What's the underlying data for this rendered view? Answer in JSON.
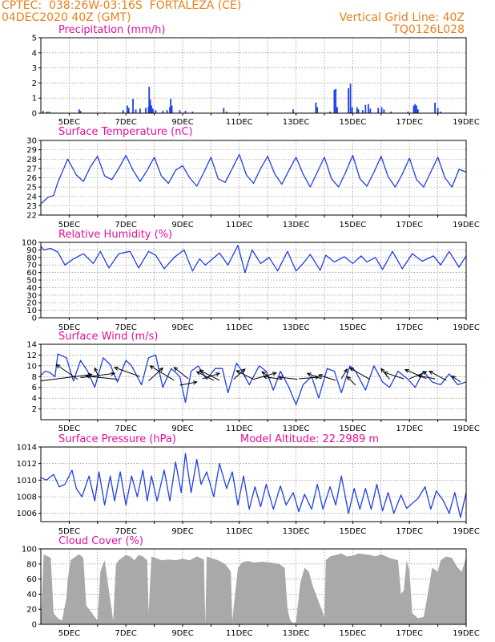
{
  "header": {
    "line1": "CPTEC:  038:26W-03:16S  FORTALEZA (CE)",
    "line2": "04DEC2020 40Z (GMT)",
    "grid_note": "Vertical Grid Line: 40Z",
    "code": "TQ0126L028"
  },
  "colors": {
    "header": "#e8801a",
    "title": "#e0109a",
    "line": "#1f3fe6",
    "bar": "#1f3fe6",
    "cloud": "#a9a9a9",
    "arrow": "#000000",
    "grid": "#7a7a7a"
  },
  "x_ticks": [
    "5DEC",
    "7DEC",
    "9DEC",
    "11DEC",
    "13DEC",
    "15DEC",
    "17DEC",
    "19DEC"
  ],
  "chart_data": [
    {
      "type": "bar",
      "title": "Precipitation (mm/h)",
      "ylim": [
        0,
        5
      ],
      "yticks": [
        0,
        1,
        2,
        3,
        4,
        5
      ],
      "x_range_days": [
        4.0,
        19.0
      ],
      "bars": [
        [
          4.08,
          0.15
        ],
        [
          4.22,
          0.1
        ],
        [
          4.3,
          0.1
        ],
        [
          5.35,
          0.25
        ],
        [
          5.4,
          0.15
        ],
        [
          6.25,
          0.05
        ],
        [
          6.9,
          0.2
        ],
        [
          7.05,
          0.5
        ],
        [
          7.1,
          0.35
        ],
        [
          7.25,
          0.95
        ],
        [
          7.35,
          0.25
        ],
        [
          7.5,
          0.3
        ],
        [
          7.7,
          0.35
        ],
        [
          7.8,
          0.4
        ],
        [
          7.82,
          1.75
        ],
        [
          7.86,
          0.9
        ],
        [
          7.9,
          0.5
        ],
        [
          7.95,
          0.3
        ],
        [
          8.05,
          0.2
        ],
        [
          8.3,
          0.15
        ],
        [
          8.45,
          0.2
        ],
        [
          8.55,
          0.4
        ],
        [
          8.58,
          0.95
        ],
        [
          8.62,
          0.5
        ],
        [
          8.9,
          0.2
        ],
        [
          9.1,
          0.15
        ],
        [
          9.35,
          0.1
        ],
        [
          10.45,
          0.35
        ],
        [
          10.55,
          0.1
        ],
        [
          12.9,
          0.25
        ],
        [
          13.7,
          0.7
        ],
        [
          13.75,
          0.4
        ],
        [
          14.2,
          0.1
        ],
        [
          14.35,
          1.55
        ],
        [
          14.4,
          1.6
        ],
        [
          14.45,
          0.4
        ],
        [
          14.85,
          1.65
        ],
        [
          14.92,
          1.95
        ],
        [
          14.98,
          0.4
        ],
        [
          15.15,
          0.4
        ],
        [
          15.2,
          0.25
        ],
        [
          15.35,
          0.2
        ],
        [
          15.45,
          0.55
        ],
        [
          15.55,
          0.6
        ],
        [
          15.62,
          0.3
        ],
        [
          15.9,
          0.35
        ],
        [
          16.02,
          0.4
        ],
        [
          16.1,
          0.25
        ],
        [
          16.35,
          0.1
        ],
        [
          16.95,
          0.1
        ],
        [
          17.15,
          0.5
        ],
        [
          17.2,
          0.6
        ],
        [
          17.25,
          0.5
        ],
        [
          17.3,
          0.25
        ],
        [
          17.9,
          0.7
        ],
        [
          18.0,
          0.35
        ],
        [
          18.1,
          0.1
        ]
      ]
    },
    {
      "type": "line",
      "title": "Surface Temperature (nC)",
      "ylim": [
        22,
        30
      ],
      "yticks": [
        22,
        23,
        24,
        25,
        26,
        27,
        28,
        29,
        30
      ],
      "x": [
        4.0,
        4.25,
        4.45,
        4.6,
        4.95,
        5.25,
        5.5,
        5.75,
        6.0,
        6.25,
        6.5,
        6.75,
        7.0,
        7.25,
        7.5,
        7.75,
        8.0,
        8.25,
        8.5,
        8.75,
        9.0,
        9.25,
        9.5,
        9.75,
        10.0,
        10.25,
        10.5,
        10.75,
        11.0,
        11.25,
        11.5,
        11.75,
        12.0,
        12.25,
        12.5,
        12.75,
        13.0,
        13.25,
        13.5,
        13.75,
        14.0,
        14.25,
        14.5,
        14.75,
        15.0,
        15.25,
        15.5,
        15.75,
        16.0,
        16.25,
        16.5,
        16.75,
        17.0,
        17.25,
        17.5,
        17.75,
        18.0,
        18.25,
        18.5,
        18.75,
        19.0
      ],
      "values": [
        23.2,
        23.9,
        24.1,
        25.5,
        28.0,
        26.3,
        25.6,
        27.2,
        28.3,
        26.2,
        25.8,
        27.0,
        28.4,
        26.8,
        25.6,
        26.8,
        28.2,
        26.2,
        25.4,
        26.8,
        27.3,
        26.0,
        25.1,
        26.6,
        28.2,
        25.9,
        25.5,
        27.0,
        28.5,
        26.3,
        25.4,
        27.0,
        28.3,
        26.4,
        25.3,
        26.8,
        28.2,
        26.4,
        25.0,
        26.6,
        28.2,
        25.9,
        25.0,
        26.6,
        28.4,
        25.9,
        25.1,
        26.6,
        28.3,
        26.1,
        25.0,
        26.4,
        28.1,
        25.8,
        25.0,
        26.6,
        28.2,
        26.0,
        25.0,
        26.9,
        26.6
      ]
    },
    {
      "type": "line",
      "title": "Relative Humidity (%)",
      "ylim": [
        0,
        100
      ],
      "yticks": [
        0,
        10,
        20,
        30,
        40,
        50,
        60,
        70,
        80,
        90,
        100
      ],
      "x": [
        4.0,
        4.1,
        4.35,
        4.6,
        4.85,
        5.15,
        5.5,
        5.85,
        6.1,
        6.4,
        6.75,
        7.15,
        7.45,
        7.8,
        8.05,
        8.35,
        8.7,
        9.05,
        9.35,
        9.6,
        9.8,
        10.05,
        10.3,
        10.6,
        10.95,
        11.2,
        11.45,
        11.75,
        12.05,
        12.35,
        12.7,
        13.0,
        13.25,
        13.5,
        13.85,
        14.05,
        14.35,
        14.7,
        15.0,
        15.3,
        15.5,
        15.8,
        16.05,
        16.4,
        16.75,
        17.1,
        17.45,
        17.85,
        18.1,
        18.4,
        18.75,
        19.0
      ],
      "values": [
        95,
        90,
        92,
        87,
        70,
        78,
        85,
        72,
        88,
        66,
        85,
        88,
        66,
        88,
        83,
        65,
        80,
        90,
        62,
        78,
        70,
        78,
        86,
        70,
        96,
        60,
        90,
        72,
        80,
        62,
        88,
        62,
        72,
        84,
        63,
        83,
        74,
        81,
        72,
        82,
        74,
        80,
        64,
        88,
        65,
        85,
        75,
        82,
        70,
        88,
        67,
        82
      ]
    },
    {
      "type": "line",
      "title": "Surface Wind (m/s)",
      "ylim": [
        0,
        14
      ],
      "yticks": [
        2,
        4,
        6,
        8,
        10,
        12,
        14
      ],
      "x": [
        4.0,
        4.15,
        4.3,
        4.5,
        4.6,
        4.9,
        5.15,
        5.4,
        5.65,
        5.9,
        6.2,
        6.45,
        6.7,
        7.0,
        7.2,
        7.55,
        7.8,
        8.05,
        8.3,
        8.6,
        8.9,
        9.1,
        9.3,
        9.55,
        9.85,
        10.15,
        10.4,
        10.6,
        10.9,
        11.1,
        11.35,
        11.7,
        11.95,
        12.2,
        12.45,
        12.75,
        13.0,
        13.25,
        13.55,
        13.8,
        14.1,
        14.35,
        14.6,
        14.9,
        15.1,
        15.45,
        15.75,
        16.05,
        16.3,
        16.6,
        16.95,
        17.2,
        17.5,
        17.8,
        18.1,
        18.4,
        18.7,
        19.0
      ],
      "values": [
        8.2,
        9.0,
        8.8,
        8.0,
        12.2,
        11.5,
        7.2,
        11.0,
        9.0,
        6.0,
        11.5,
        10.2,
        7.0,
        11.0,
        10.0,
        6.5,
        11.5,
        12.0,
        6.0,
        9.5,
        8.0,
        3.2,
        9.0,
        10.0,
        7.5,
        9.5,
        9.5,
        5.0,
        10.5,
        9.0,
        6.5,
        10.0,
        9.0,
        5.5,
        9.0,
        6.0,
        2.8,
        6.5,
        8.0,
        4.0,
        9.5,
        9.0,
        5.0,
        10.0,
        9.0,
        5.5,
        10.0,
        7.0,
        6.0,
        9.0,
        7.5,
        6.0,
        9.0,
        7.0,
        6.5,
        8.5,
        6.5,
        7.0
      ],
      "arrows": [
        [
          4.0,
          7.2,
          5.8,
          8.4
        ],
        [
          5.3,
          7.5,
          4.55,
          10.2
        ],
        [
          5.4,
          7.8,
          6.6,
          8.6
        ],
        [
          6.05,
          7.8,
          5.9,
          9.6
        ],
        [
          6.7,
          7.5,
          5.6,
          8.1
        ],
        [
          7.5,
          8.0,
          6.6,
          9.7
        ],
        [
          7.8,
          7.2,
          8.3,
          9.6
        ],
        [
          8.7,
          7.3,
          7.85,
          10.0
        ],
        [
          8.9,
          6.4,
          9.5,
          7.0
        ],
        [
          9.2,
          7.6,
          8.7,
          9.7
        ],
        [
          9.7,
          7.6,
          10.3,
          8.6
        ],
        [
          10.1,
          7.3,
          9.5,
          8.9
        ],
        [
          10.3,
          7.3,
          9.6,
          9.2
        ],
        [
          10.8,
          7.5,
          11.2,
          9.4
        ],
        [
          11.5,
          7.5,
          10.9,
          9.1
        ],
        [
          11.5,
          7.5,
          12.3,
          8.7
        ],
        [
          12.1,
          7.7,
          11.8,
          8.9
        ],
        [
          12.5,
          7.5,
          11.85,
          8.0
        ],
        [
          13.05,
          7.5,
          12.4,
          7.9
        ],
        [
          13.1,
          7.6,
          13.8,
          7.9
        ],
        [
          13.9,
          7.6,
          13.4,
          8.6
        ],
        [
          14.4,
          7.3,
          13.8,
          8.3
        ],
        [
          14.6,
          7.6,
          14.8,
          9.4
        ],
        [
          15.1,
          6.4,
          14.8,
          8.0
        ],
        [
          15.6,
          7.5,
          14.9,
          9.6
        ],
        [
          16.3,
          7.5,
          16.0,
          9.5
        ],
        [
          16.8,
          7.6,
          16.1,
          8.8
        ],
        [
          17.0,
          7.6,
          17.6,
          8.9
        ],
        [
          17.6,
          7.6,
          16.85,
          9.3
        ],
        [
          17.9,
          7.6,
          17.3,
          8.2
        ],
        [
          18.3,
          7.3,
          17.7,
          9.0
        ],
        [
          18.8,
          7.0,
          18.5,
          8.1
        ]
      ]
    },
    {
      "type": "line",
      "title": "Surface Pressure (hPa)",
      "annotation": "Model Altitude: 22.2989 m",
      "ylim": [
        1005,
        1014
      ],
      "yticks": [
        1006,
        1008,
        1010,
        1012,
        1014
      ],
      "x": [
        4.0,
        4.2,
        4.45,
        4.65,
        4.85,
        5.1,
        5.25,
        5.45,
        5.7,
        5.9,
        6.05,
        6.25,
        6.45,
        6.6,
        6.8,
        7.0,
        7.2,
        7.4,
        7.6,
        7.75,
        7.9,
        8.1,
        8.35,
        8.55,
        8.75,
        8.95,
        9.1,
        9.3,
        9.5,
        9.65,
        9.85,
        10.1,
        10.3,
        10.55,
        10.75,
        10.95,
        11.15,
        11.35,
        11.55,
        11.75,
        11.95,
        12.2,
        12.45,
        12.65,
        12.9,
        13.1,
        13.3,
        13.55,
        13.75,
        13.95,
        14.2,
        14.4,
        14.6,
        14.85,
        15.05,
        15.25,
        15.45,
        15.65,
        15.85,
        16.05,
        16.25,
        16.45,
        16.7,
        16.9,
        17.1,
        17.3,
        17.55,
        17.75,
        17.95,
        18.2,
        18.4,
        18.6,
        18.8,
        19.0
      ],
      "values": [
        1010.3,
        1010.0,
        1010.7,
        1009.2,
        1009.5,
        1011.2,
        1009.0,
        1008.0,
        1010.5,
        1007.5,
        1011.0,
        1007.0,
        1010.5,
        1007.5,
        1011.0,
        1007.0,
        1010.5,
        1008.0,
        1011.2,
        1007.5,
        1010.5,
        1007.5,
        1011.2,
        1007.5,
        1012.2,
        1008.5,
        1013.2,
        1008.5,
        1012.5,
        1009.5,
        1011.0,
        1008.0,
        1012.0,
        1009.0,
        1011.0,
        1007.0,
        1010.5,
        1006.5,
        1009.2,
        1006.8,
        1009.5,
        1006.5,
        1009.3,
        1007.0,
        1008.5,
        1006.2,
        1008.3,
        1006.5,
        1009.5,
        1006.5,
        1009.2,
        1007.0,
        1010.5,
        1006.0,
        1009.0,
        1006.5,
        1009.0,
        1006.5,
        1009.5,
        1006.3,
        1008.5,
        1006.0,
        1008.2,
        1006.6,
        1007.2,
        1007.8,
        1009.2,
        1006.5,
        1008.7,
        1007.5,
        1006.0,
        1008.5,
        1005.5,
        1008.5
      ]
    },
    {
      "type": "area",
      "title": "Cloud Cover (%)",
      "ylim": [
        0,
        100
      ],
      "yticks": [
        0,
        20,
        40,
        60,
        80,
        100
      ],
      "x": [
        4.0,
        4.1,
        4.35,
        4.45,
        4.6,
        4.75,
        4.9,
        4.95,
        5.05,
        5.15,
        5.35,
        5.5,
        5.6,
        6.0,
        6.1,
        6.25,
        6.4,
        6.55,
        6.65,
        6.75,
        7.0,
        7.15,
        7.3,
        7.45,
        7.6,
        7.75,
        7.8,
        7.9,
        8.05,
        8.25,
        8.5,
        8.75,
        9.0,
        9.25,
        9.5,
        9.75,
        9.8,
        9.85,
        10.0,
        10.25,
        10.5,
        10.7,
        10.75,
        10.85,
        10.95,
        11.1,
        11.3,
        11.5,
        11.8,
        12.1,
        12.4,
        12.6,
        12.7,
        12.8,
        12.9,
        13.0,
        13.15,
        13.3,
        13.45,
        13.6,
        13.8,
        14.0,
        14.05,
        14.2,
        14.4,
        14.6,
        14.8,
        15.0,
        15.2,
        15.4,
        15.6,
        15.8,
        16.0,
        16.3,
        16.6,
        16.7,
        16.8,
        16.9,
        17.0,
        17.1,
        17.3,
        17.5,
        17.6,
        17.8,
        18.0,
        18.1,
        18.3,
        18.5,
        18.7,
        18.85,
        19.0
      ],
      "values": [
        0,
        93,
        88,
        15,
        8,
        5,
        35,
        60,
        85,
        88,
        93,
        88,
        25,
        5,
        70,
        85,
        45,
        5,
        80,
        85,
        92,
        90,
        85,
        92,
        90,
        85,
        15,
        90,
        88,
        85,
        86,
        85,
        87,
        85,
        90,
        86,
        0,
        90,
        88,
        85,
        80,
        70,
        5,
        40,
        75,
        82,
        84,
        82,
        83,
        82,
        80,
        75,
        20,
        5,
        2,
        3,
        55,
        75,
        70,
        50,
        30,
        10,
        85,
        90,
        92,
        94,
        90,
        91,
        94,
        93,
        92,
        90,
        93,
        88,
        85,
        40,
        45,
        85,
        70,
        15,
        8,
        10,
        30,
        75,
        70,
        85,
        90,
        88,
        75,
        70,
        90
      ]
    }
  ]
}
